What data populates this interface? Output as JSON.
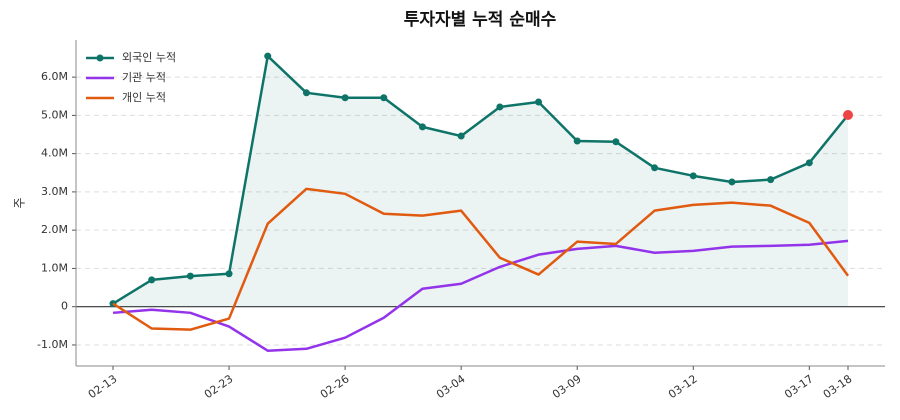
{
  "chart_data": {
    "type": "line",
    "title": "투자자별 누적 순매수",
    "y_label": "주",
    "categories": [
      "02-13",
      null,
      null,
      "02-23",
      null,
      null,
      "02-26",
      null,
      null,
      "03-04",
      null,
      null,
      "03-09",
      null,
      null,
      "03-12",
      null,
      null,
      "03-17",
      "03-18"
    ],
    "series": [
      {
        "name": "외국인 누적",
        "color": "#0f7468",
        "markers": true,
        "area": true,
        "last_point_color": "#ef4444",
        "values": [
          80000,
          700000,
          800000,
          860000,
          6550000,
          5590000,
          5460000,
          5460000,
          4700000,
          4460000,
          5220000,
          5350000,
          4330000,
          4310000,
          3630000,
          3420000,
          3260000,
          3320000,
          3760000,
          5010000
        ]
      },
      {
        "name": "기관 누적",
        "color": "#9333ea",
        "markers": false,
        "area": false,
        "values": [
          -160000,
          -80000,
          -160000,
          -520000,
          -1150000,
          -1100000,
          -810000,
          -290000,
          470000,
          600000,
          1040000,
          1360000,
          1510000,
          1590000,
          1410000,
          1460000,
          1570000,
          1590000,
          1620000,
          1720000
        ]
      },
      {
        "name": "개인 누적",
        "color": "#e05a10",
        "markers": false,
        "area": false,
        "values": [
          80000,
          -570000,
          -600000,
          -310000,
          2170000,
          3080000,
          2950000,
          2430000,
          2380000,
          2510000,
          1280000,
          840000,
          1700000,
          1640000,
          2510000,
          2660000,
          2720000,
          2640000,
          2190000,
          810000
        ]
      }
    ],
    "ylim": [
      -1550000,
      6970000
    ],
    "yticks": [
      {
        "value": -1000000,
        "label": "-1.0M"
      },
      0,
      {
        "value": 1000000,
        "label": "1.0M"
      },
      {
        "value": 2000000,
        "label": "2.0M"
      },
      {
        "value": 3000000,
        "label": "3.0M"
      },
      {
        "value": 4000000,
        "label": "4.0M"
      },
      {
        "value": 5000000,
        "label": "5.0M"
      },
      {
        "value": 6000000,
        "label": "6.0M"
      }
    ],
    "grid": true,
    "zero_line": true,
    "legend": "upper-left"
  }
}
